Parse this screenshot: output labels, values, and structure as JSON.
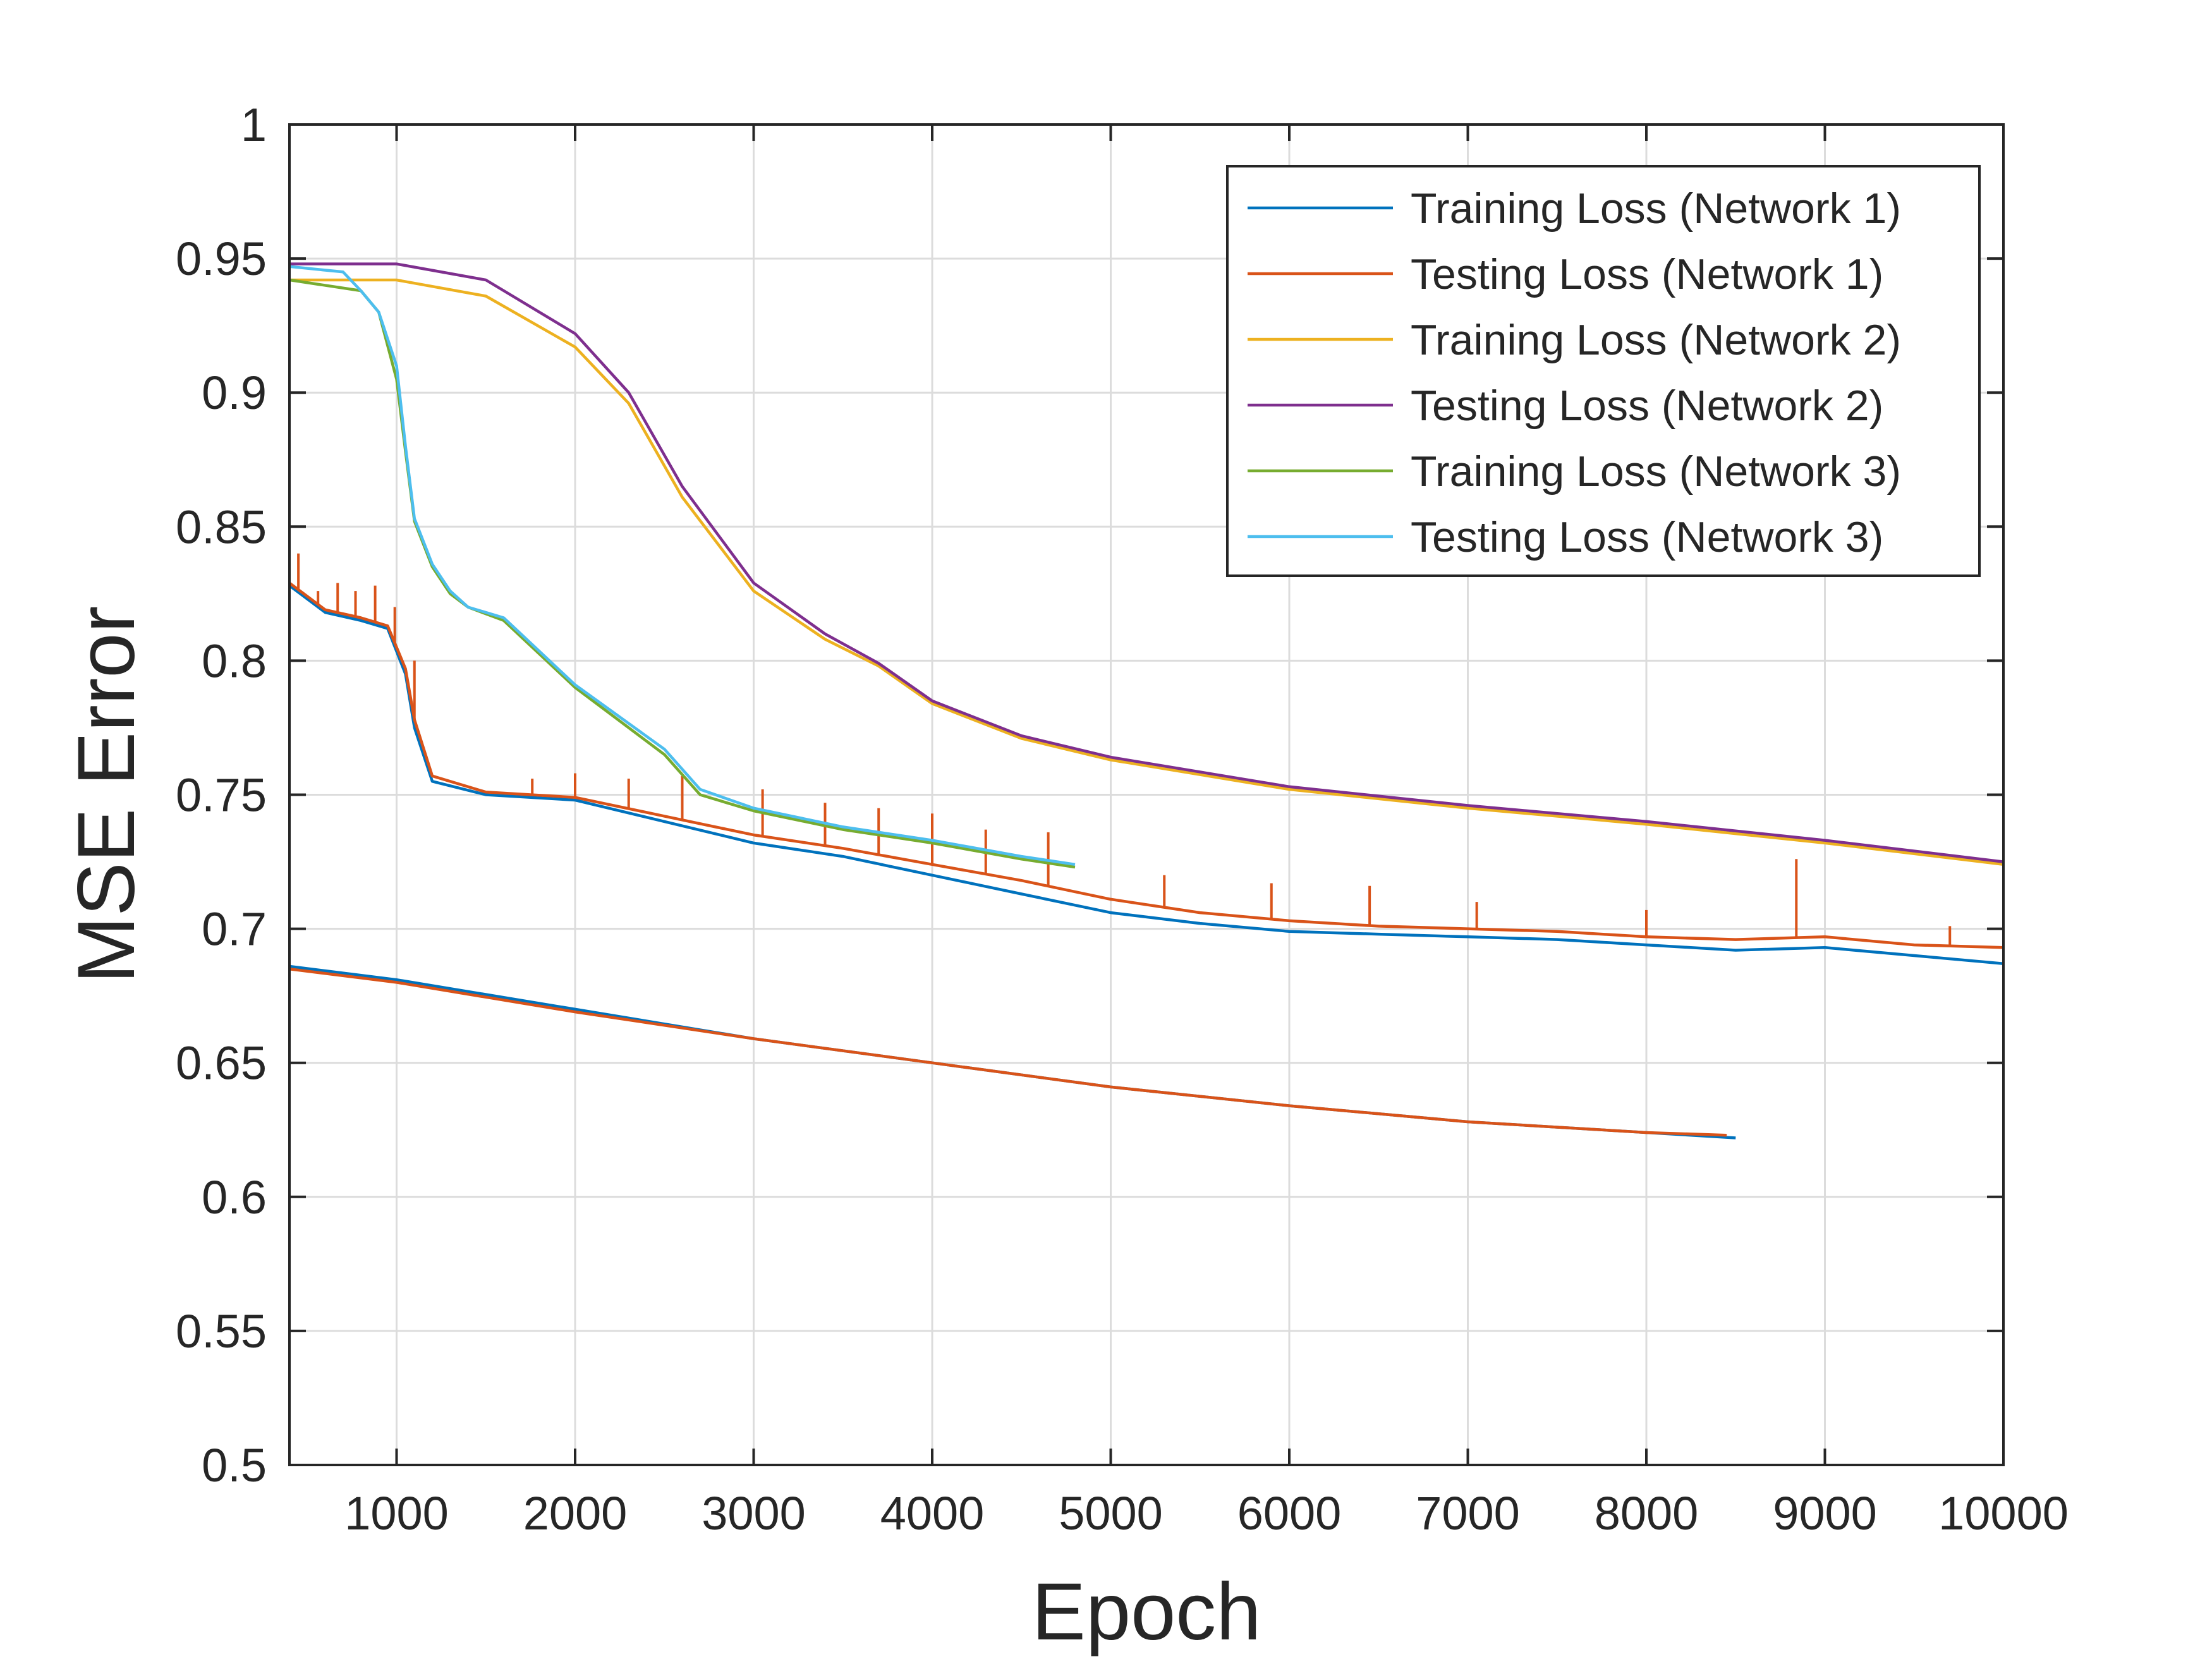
{
  "chart_data": {
    "type": "line",
    "title": "",
    "xlabel": "Epoch",
    "ylabel": "MSE Error",
    "xlim": [
      400,
      10000
    ],
    "ylim": [
      0.5,
      1
    ],
    "xticks": [
      1000,
      2000,
      3000,
      4000,
      5000,
      6000,
      7000,
      8000,
      9000,
      10000
    ],
    "xtick_labels": [
      "1000",
      "2000",
      "3000",
      "4000",
      "5000",
      "6000",
      "7000",
      "8000",
      "9000",
      "10000"
    ],
    "yticks": [
      0.5,
      0.55,
      0.6,
      0.65,
      0.7,
      0.75,
      0.8,
      0.85,
      0.9,
      0.95,
      1
    ],
    "ytick_labels": [
      "0.5",
      "0.55",
      "0.6",
      "0.65",
      "0.7",
      "0.75",
      "0.8",
      "0.85",
      "0.9",
      "0.95",
      "1"
    ],
    "grid": true,
    "legend_position": "top-right",
    "series": [
      {
        "name": "Training Loss (Network 1)",
        "color": "#0072BD",
        "segments": [
          {
            "x": [
              400,
              1000,
              2000,
              3000,
              4000,
              5000,
              6000,
              7000,
              8000,
              8500
            ],
            "y": [
              0.686,
              0.681,
              0.67,
              0.659,
              0.65,
              0.641,
              0.634,
              0.628,
              0.624,
              0.622
            ]
          },
          {
            "x": [
              400,
              600,
              800,
              950,
              1050,
              1100,
              1200,
              1500,
              2000,
              2500,
              3000,
              3500,
              4000,
              4500,
              5000,
              5500,
              6000,
              6500,
              7000,
              7500,
              8000,
              8500,
              9000,
              9500,
              10000
            ],
            "y": [
              0.828,
              0.818,
              0.815,
              0.812,
              0.795,
              0.775,
              0.755,
              0.75,
              0.748,
              0.74,
              0.732,
              0.727,
              0.72,
              0.713,
              0.706,
              0.702,
              0.699,
              0.698,
              0.697,
              0.696,
              0.694,
              0.692,
              0.693,
              0.69,
              0.687
            ]
          }
        ]
      },
      {
        "name": "Testing Loss (Network 1)",
        "color": "#D95319",
        "segments": [
          {
            "x": [
              400,
              1000,
              2000,
              3000,
              4000,
              5000,
              6000,
              7000,
              8000,
              8450
            ],
            "y": [
              0.685,
              0.68,
              0.669,
              0.659,
              0.65,
              0.641,
              0.634,
              0.628,
              0.624,
              0.623
            ]
          },
          {
            "x": [
              400,
              600,
              800,
              950,
              1050,
              1100,
              1200,
              1500,
              2000,
              2500,
              3000,
              3500,
              4000,
              4500,
              5000,
              5500,
              6000,
              6500,
              7000,
              7500,
              8000,
              8500,
              9000,
              9500,
              10000
            ],
            "y": [
              0.829,
              0.819,
              0.816,
              0.813,
              0.797,
              0.778,
              0.757,
              0.751,
              0.749,
              0.742,
              0.735,
              0.73,
              0.724,
              0.718,
              0.711,
              0.706,
              0.703,
              0.701,
              0.7,
              0.699,
              0.697,
              0.696,
              0.697,
              0.694,
              0.693
            ]
          }
        ],
        "spikes": [
          {
            "x": 450,
            "y": 0.84
          },
          {
            "x": 560,
            "y": 0.826
          },
          {
            "x": 670,
            "y": 0.829
          },
          {
            "x": 770,
            "y": 0.826
          },
          {
            "x": 880,
            "y": 0.828
          },
          {
            "x": 990,
            "y": 0.82
          },
          {
            "x": 1100,
            "y": 0.8
          },
          {
            "x": 1760,
            "y": 0.756
          },
          {
            "x": 2000,
            "y": 0.758
          },
          {
            "x": 2300,
            "y": 0.756
          },
          {
            "x": 2600,
            "y": 0.757
          },
          {
            "x": 3050,
            "y": 0.752
          },
          {
            "x": 3400,
            "y": 0.747
          },
          {
            "x": 3700,
            "y": 0.745
          },
          {
            "x": 4000,
            "y": 0.743
          },
          {
            "x": 4300,
            "y": 0.737
          },
          {
            "x": 4650,
            "y": 0.736
          },
          {
            "x": 5300,
            "y": 0.72
          },
          {
            "x": 5900,
            "y": 0.717
          },
          {
            "x": 6450,
            "y": 0.716
          },
          {
            "x": 7050,
            "y": 0.71
          },
          {
            "x": 8000,
            "y": 0.707
          },
          {
            "x": 8840,
            "y": 0.726
          },
          {
            "x": 9700,
            "y": 0.701
          }
        ]
      },
      {
        "name": "Training Loss (Network 2)",
        "color": "#EDB120",
        "segments": [
          {
            "x": [
              400,
              1000,
              1500,
              2000,
              2300,
              2600,
              3000,
              3400,
              3700,
              4000,
              4500,
              5000,
              6000,
              7000,
              8000,
              9000,
              10000
            ],
            "y": [
              0.942,
              0.942,
              0.936,
              0.917,
              0.896,
              0.861,
              0.826,
              0.808,
              0.798,
              0.784,
              0.771,
              0.763,
              0.752,
              0.745,
              0.739,
              0.732,
              0.724
            ]
          }
        ]
      },
      {
        "name": "Testing Loss (Network 2)",
        "color": "#7E2F8E",
        "segments": [
          {
            "x": [
              400,
              1000,
              1500,
              2000,
              2300,
              2600,
              3000,
              3400,
              3700,
              4000,
              4500,
              5000,
              6000,
              7000,
              8000,
              9000,
              10000
            ],
            "y": [
              0.948,
              0.948,
              0.942,
              0.922,
              0.9,
              0.865,
              0.829,
              0.81,
              0.799,
              0.785,
              0.772,
              0.764,
              0.753,
              0.746,
              0.74,
              0.733,
              0.725
            ]
          }
        ]
      },
      {
        "name": "Training Loss (Network 3)",
        "color": "#77AC30",
        "segments": [
          {
            "x": [
              400,
              800,
              900,
              1000,
              1050,
              1100,
              1200,
              1300,
              1400,
              1600,
              2000,
              2500,
              2700,
              3000,
              3500,
              4000,
              4500,
              4800
            ],
            "y": [
              0.942,
              0.938,
              0.93,
              0.905,
              0.878,
              0.852,
              0.835,
              0.825,
              0.82,
              0.815,
              0.79,
              0.765,
              0.75,
              0.744,
              0.737,
              0.732,
              0.726,
              0.723
            ]
          }
        ]
      },
      {
        "name": "Testing Loss (Network 3)",
        "color": "#4DBEEE",
        "segments": [
          {
            "x": [
              400,
              700,
              800,
              900,
              1000,
              1050,
              1100,
              1200,
              1300,
              1400,
              1600,
              2000,
              2500,
              2700,
              3000,
              3500,
              4000,
              4500,
              4800
            ],
            "y": [
              0.947,
              0.945,
              0.938,
              0.93,
              0.91,
              0.88,
              0.853,
              0.836,
              0.826,
              0.82,
              0.816,
              0.791,
              0.767,
              0.752,
              0.745,
              0.738,
              0.733,
              0.727,
              0.724
            ]
          }
        ]
      }
    ]
  }
}
